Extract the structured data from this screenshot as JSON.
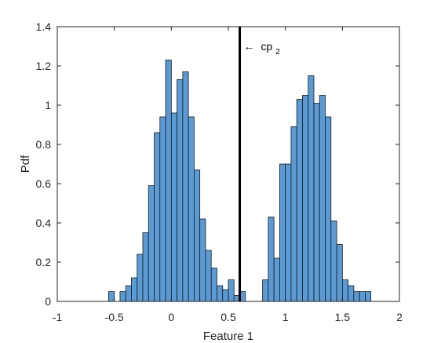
{
  "chart_data": {
    "type": "bar",
    "xlabel": "Feature 1",
    "ylabel": "Pdf",
    "xlim": [
      -1,
      2
    ],
    "ylim": [
      0,
      1.4
    ],
    "xticks": [
      -1,
      -0.5,
      0,
      0.5,
      1,
      1.5,
      2
    ],
    "xtick_labels": [
      "-1",
      "-0.5",
      "0",
      "0.5",
      "1",
      "1.5",
      "2"
    ],
    "yticks": [
      0,
      0.2,
      0.4,
      0.6,
      0.8,
      1,
      1.2,
      1.4
    ],
    "ytick_labels": [
      "0",
      "0.2",
      "0.4",
      "0.6",
      "0.8",
      "1",
      "1.2",
      "1.4"
    ],
    "grid": false,
    "bin_width": 0.05,
    "bar_color": "#5b9bd5",
    "edge_color": "#1a1a1a",
    "bins": [
      {
        "x0": -0.55,
        "value": 0.05
      },
      {
        "x0": -0.5,
        "value": 0.0
      },
      {
        "x0": -0.45,
        "value": 0.05
      },
      {
        "x0": -0.4,
        "value": 0.08
      },
      {
        "x0": -0.35,
        "value": 0.12
      },
      {
        "x0": -0.3,
        "value": 0.24
      },
      {
        "x0": -0.25,
        "value": 0.35
      },
      {
        "x0": -0.2,
        "value": 0.59
      },
      {
        "x0": -0.15,
        "value": 0.86
      },
      {
        "x0": -0.1,
        "value": 0.94
      },
      {
        "x0": -0.05,
        "value": 1.23
      },
      {
        "x0": 0.0,
        "value": 0.96
      },
      {
        "x0": 0.05,
        "value": 1.13
      },
      {
        "x0": 0.1,
        "value": 1.17
      },
      {
        "x0": 0.15,
        "value": 0.94
      },
      {
        "x0": 0.2,
        "value": 0.67
      },
      {
        "x0": 0.25,
        "value": 0.42
      },
      {
        "x0": 0.3,
        "value": 0.26
      },
      {
        "x0": 0.35,
        "value": 0.17
      },
      {
        "x0": 0.4,
        "value": 0.08
      },
      {
        "x0": 0.45,
        "value": 0.06
      },
      {
        "x0": 0.5,
        "value": 0.11
      },
      {
        "x0": 0.55,
        "value": 0.03
      },
      {
        "x0": 0.6,
        "value": 0.05
      },
      {
        "x0": 0.65,
        "value": 0.0
      },
      {
        "x0": 0.7,
        "value": 0.0
      },
      {
        "x0": 0.75,
        "value": 0.0
      },
      {
        "x0": 0.8,
        "value": 0.11
      },
      {
        "x0": 0.85,
        "value": 0.43
      },
      {
        "x0": 0.9,
        "value": 0.22
      },
      {
        "x0": 0.95,
        "value": 0.7
      },
      {
        "x0": 1.0,
        "value": 0.7
      },
      {
        "x0": 1.05,
        "value": 0.89
      },
      {
        "x0": 1.1,
        "value": 1.03
      },
      {
        "x0": 1.15,
        "value": 1.05
      },
      {
        "x0": 1.2,
        "value": 1.15
      },
      {
        "x0": 1.25,
        "value": 1.01
      },
      {
        "x0": 1.3,
        "value": 1.05
      },
      {
        "x0": 1.35,
        "value": 0.94
      },
      {
        "x0": 1.4,
        "value": 0.41
      },
      {
        "x0": 1.45,
        "value": 0.29
      },
      {
        "x0": 1.5,
        "value": 0.11
      },
      {
        "x0": 1.55,
        "value": 0.08
      },
      {
        "x0": 1.6,
        "value": 0.05
      },
      {
        "x0": 1.65,
        "value": 0.05
      },
      {
        "x0": 1.7,
        "value": 0.05
      }
    ],
    "vertical_line": {
      "x": 0.6,
      "color": "#000000"
    },
    "annotation": {
      "arrow": "←",
      "text": "cp",
      "subscript": "2",
      "x": 0.6,
      "y": 1.3
    }
  }
}
